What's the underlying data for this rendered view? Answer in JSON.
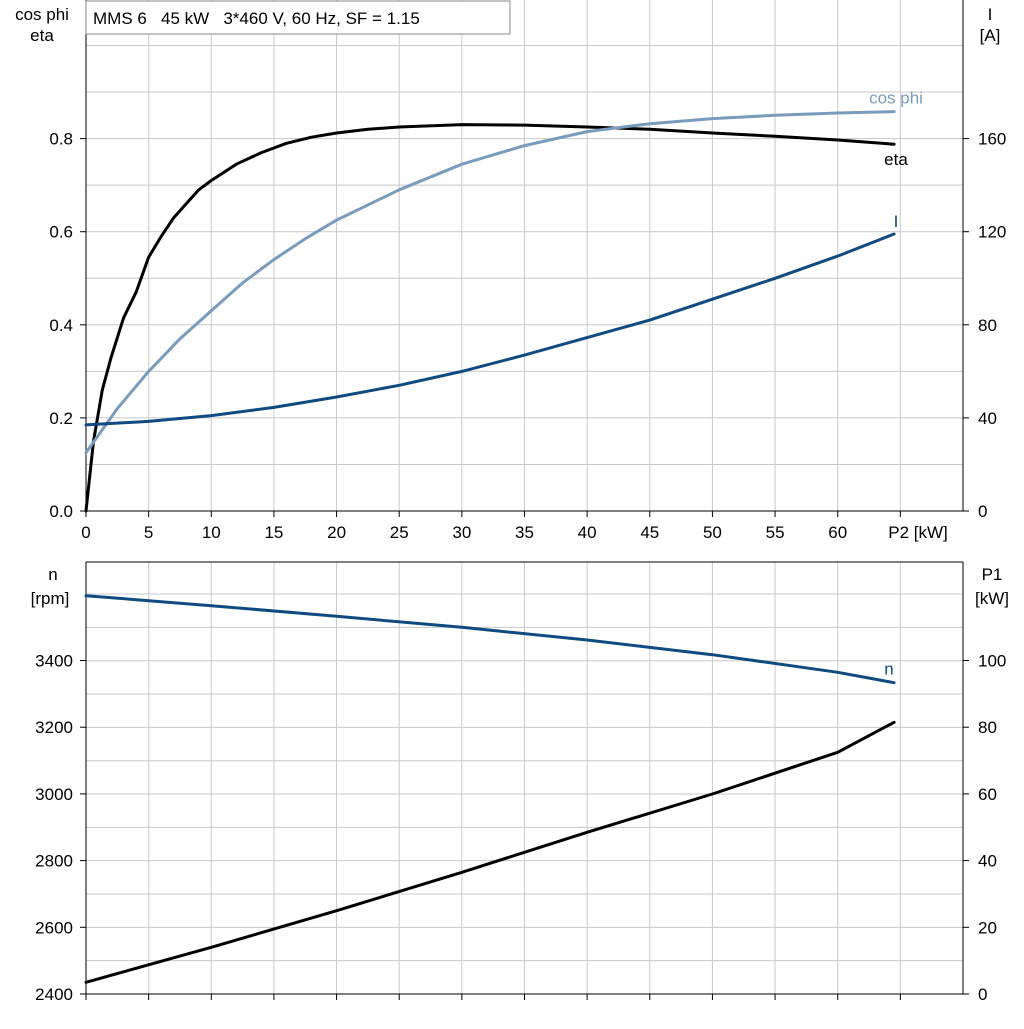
{
  "title": "MMS 6   45 kW   3*460 V, 60 Hz, SF = 1.15",
  "colors": {
    "eta": "#000000",
    "cos_phi": "#7a9cbc",
    "current": "#0f4a80",
    "speed": "#0f4a80",
    "p1": "#000000",
    "grid": "#c8c8c8"
  },
  "chart_data": [
    {
      "type": "line",
      "panel": "top",
      "xlabel": "P2 [kW]",
      "x_ticks": [
        0,
        5,
        10,
        15,
        20,
        25,
        30,
        35,
        40,
        45,
        50,
        55,
        60
      ],
      "xlim": [
        0,
        70
      ],
      "ylabel_left": [
        "cos phi",
        "eta"
      ],
      "ylim_left": [
        0,
        1.0
      ],
      "y_ticks_left": [
        "0.0",
        "0.2",
        "0.4",
        "0.6",
        "0.8"
      ],
      "ylabel_right": [
        "I",
        "[A]"
      ],
      "ylim_right": [
        0,
        200
      ],
      "y_ticks_right": [
        "0",
        "40",
        "80",
        "120",
        "160"
      ],
      "grid": true,
      "series": [
        {
          "name": "eta",
          "axis": "left",
          "x": [
            0,
            0.6,
            1.3,
            2.0,
            3.0,
            4.0,
            5.0,
            6.0,
            7.0,
            8.0,
            9.0,
            10.0,
            12.0,
            14.0,
            16.0,
            18.0,
            20.0,
            22.5,
            25.0,
            30.0,
            35.0,
            40.0,
            45.0,
            50.0,
            55.0,
            60.0,
            64.5
          ],
          "y": [
            0.0,
            0.15,
            0.26,
            0.33,
            0.415,
            0.47,
            0.545,
            0.59,
            0.63,
            0.66,
            0.69,
            0.71,
            0.745,
            0.77,
            0.79,
            0.803,
            0.812,
            0.82,
            0.825,
            0.83,
            0.829,
            0.825,
            0.82,
            0.812,
            0.805,
            0.797,
            0.788
          ]
        },
        {
          "name": "cos phi",
          "axis": "left",
          "x": [
            0,
            2.5,
            5.0,
            7.5,
            10.0,
            12.5,
            15.0,
            17.5,
            20.0,
            25.0,
            30.0,
            35.0,
            40.0,
            45.0,
            50.0,
            55.0,
            60.0,
            64.5
          ],
          "y": [
            0.125,
            0.22,
            0.3,
            0.37,
            0.43,
            0.49,
            0.54,
            0.585,
            0.625,
            0.69,
            0.745,
            0.785,
            0.815,
            0.832,
            0.843,
            0.85,
            0.855,
            0.858
          ]
        },
        {
          "name": "I",
          "axis": "right",
          "x": [
            0,
            5,
            10,
            15,
            20,
            25,
            30,
            35,
            40,
            45,
            50,
            55,
            60,
            64.5
          ],
          "y": [
            37,
            38.5,
            41,
            44.5,
            49,
            54,
            60,
            67,
            74.5,
            82,
            91,
            100,
            109.5,
            119
          ]
        }
      ]
    },
    {
      "type": "line",
      "panel": "bottom",
      "xlim": [
        0,
        70
      ],
      "ylabel_left": [
        "n",
        "[rpm]"
      ],
      "ylim_left": [
        2400,
        3600
      ],
      "y_ticks_left": [
        "2400",
        "2600",
        "2800",
        "3000",
        "3200",
        "3400"
      ],
      "ylabel_right": [
        "P1",
        "[kW]"
      ],
      "ylim_right": [
        0,
        120
      ],
      "y_ticks_right": [
        "0",
        "20",
        "40",
        "60",
        "80",
        "100"
      ],
      "grid": true,
      "series": [
        {
          "name": "n",
          "axis": "left",
          "x": [
            0,
            10,
            20,
            30,
            40,
            50,
            60,
            64.5
          ],
          "y": [
            3595,
            3565,
            3533,
            3500,
            3462,
            3418,
            3365,
            3334
          ]
        },
        {
          "name": "",
          "axis": "right",
          "x": [
            0,
            10,
            20,
            30,
            40,
            50,
            60,
            64.5
          ],
          "y": [
            3.5,
            14,
            25,
            36.5,
            48.5,
            60,
            72.5,
            81.5
          ]
        }
      ]
    }
  ]
}
